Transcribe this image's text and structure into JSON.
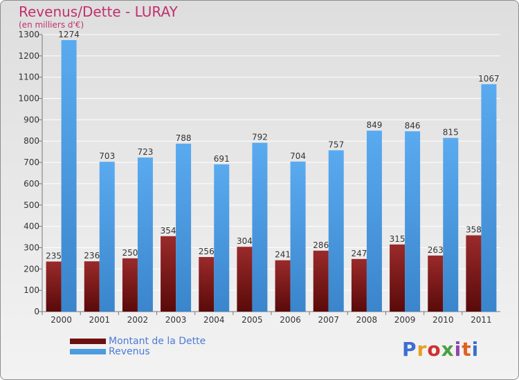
{
  "title": "Revenus/Dette - LURAY",
  "subtitle": "(en milliers d'€)",
  "logo": {
    "text": "Proxiti",
    "colors": [
      "#3b6fd0",
      "#e8a020",
      "#d03030",
      "#4aa040",
      "#8e44ad",
      "#e06020",
      "#3b6fd0"
    ]
  },
  "colors": {
    "dette": "#6e1010",
    "revenus": "#4a9be0",
    "frame_bg": "#e6e6e6",
    "title": "#c0306e"
  },
  "chart_data": {
    "type": "bar",
    "categories": [
      "2000",
      "2001",
      "2002",
      "2003",
      "2004",
      "2005",
      "2006",
      "2007",
      "2008",
      "2009",
      "2010",
      "2011"
    ],
    "series": [
      {
        "name": "Montant de la Dette",
        "values": [
          235,
          236,
          250,
          354,
          256,
          304,
          241,
          286,
          247,
          315,
          263,
          358
        ]
      },
      {
        "name": "Revenus",
        "values": [
          1274,
          703,
          723,
          788,
          691,
          792,
          704,
          757,
          849,
          846,
          815,
          1067
        ]
      }
    ],
    "ylim": [
      0,
      1300
    ],
    "yticks": [
      0,
      100,
      200,
      300,
      400,
      500,
      600,
      700,
      800,
      900,
      1000,
      1100,
      1200,
      1300
    ],
    "grid": true,
    "legend_position": "bottom-left"
  }
}
